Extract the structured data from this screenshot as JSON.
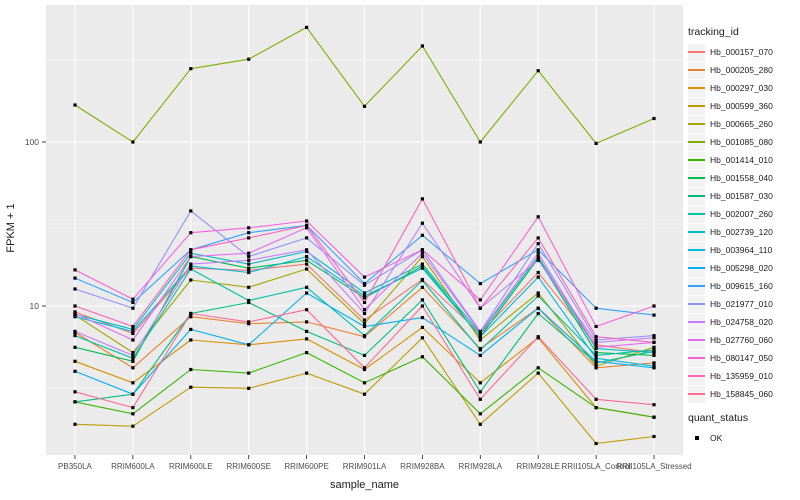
{
  "figure": {
    "legend": {
      "tracking_title": "tracking_id",
      "quant_title": "quant_status",
      "quant_ok_label": "OK"
    },
    "colors": {
      "panel_bg": "#EBEBEB",
      "gridline": "#FFFFFF",
      "tick_mark": "#333333",
      "tick_label": "#4D4D4D",
      "title_text": "#1A1A1A",
      "point": "#000000",
      "legend_key_bg": "#F2F2F2"
    }
  },
  "chart_data": {
    "type": "line",
    "title": "",
    "xlabel": "sample_name",
    "ylabel": "FPKM + 1",
    "y_scale": "log10",
    "ylim": [
      1.2,
      600
    ],
    "y_ticks": [
      10,
      100
    ],
    "y_minor_gridlines": [
      3.162,
      31.62,
      316.2
    ],
    "grid": "on",
    "legend_position": "right",
    "point_shape": "square",
    "point_color": "#000000",
    "quant_status": "OK",
    "categories": [
      "PB350LA",
      "RRIM600LA",
      "RRIM600LE",
      "RRIM600SE",
      "RRIM600PE",
      "RRIM901LA",
      "RRIM928BA",
      "RRIM928LA",
      "RRIM928LE",
      "RRII105LA_Control",
      "RRII105LA_Stressed"
    ],
    "series": [
      {
        "name": "Hb_000157_070",
        "color": "#F8766D",
        "values": [
          9.2,
          6.8,
          17,
          16.5,
          18,
          8.2,
          14.5,
          6.8,
          16,
          5.8,
          5.2
        ]
      },
      {
        "name": "Hb_000205_280",
        "color": "#EA8331",
        "values": [
          6.9,
          4.2,
          8.6,
          7.8,
          8.0,
          6.5,
          13,
          5.5,
          9.7,
          4.2,
          4.5
        ]
      },
      {
        "name": "Hb_000297_030",
        "color": "#D89000",
        "values": [
          4.6,
          3.4,
          6.2,
          5.8,
          6.3,
          4.1,
          7.4,
          3.4,
          6.4,
          2.4,
          2.1
        ]
      },
      {
        "name": "Hb_000599_360",
        "color": "#C09B00",
        "values": [
          1.9,
          1.85,
          3.2,
          3.15,
          3.9,
          2.9,
          6.4,
          1.9,
          3.9,
          1.45,
          1.6
        ]
      },
      {
        "name": "Hb_000665_260",
        "color": "#A3A500",
        "values": [
          8.8,
          5.2,
          14.4,
          13,
          16.8,
          7.8,
          20,
          6.2,
          12,
          4.3,
          5.6
        ]
      },
      {
        "name": "Hb_001085_080",
        "color": "#7CAE00",
        "values": [
          168,
          100,
          280,
          320,
          500,
          165,
          385,
          100,
          272,
          98,
          139
        ]
      },
      {
        "name": "Hb_001414_010",
        "color": "#39B600",
        "values": [
          2.6,
          2.2,
          4.1,
          3.9,
          5.2,
          3.4,
          4.9,
          2.2,
          4.2,
          2.4,
          2.1
        ]
      },
      {
        "name": "Hb_001558_040",
        "color": "#00BB4E",
        "values": [
          5.6,
          4.6,
          20,
          17,
          19,
          11.2,
          17.5,
          6.5,
          19.5,
          5.2,
          5.0
        ]
      },
      {
        "name": "Hb_001587_030",
        "color": "#00BF7D",
        "values": [
          2.6,
          2.9,
          9.0,
          10.5,
          7.0,
          5.0,
          10.9,
          3.0,
          9.0,
          4.5,
          5.3
        ]
      },
      {
        "name": "Hb_002007_260",
        "color": "#00C1A3",
        "values": [
          6.6,
          4.8,
          16.8,
          10.8,
          13,
          6.6,
          14.3,
          5.4,
          11.5,
          5.0,
          5.4
        ]
      },
      {
        "name": "Hb_002739_120",
        "color": "#00BFC4",
        "values": [
          8.9,
          7.2,
          21,
          18,
          21.5,
          12,
          18,
          6.8,
          20,
          5.5,
          5.2
        ]
      },
      {
        "name": "Hb_003964_110",
        "color": "#00BAE0",
        "values": [
          8.6,
          7.0,
          17.5,
          16,
          20,
          11.5,
          17,
          6.5,
          15,
          4.8,
          4.3
        ]
      },
      {
        "name": "Hb_005298_020",
        "color": "#00B0F6",
        "values": [
          4.0,
          2.9,
          7.2,
          5.8,
          12,
          7.5,
          8.5,
          5.0,
          9.7,
          4.6,
          4.2
        ]
      },
      {
        "name": "Hb_009615_160",
        "color": "#35A2FF",
        "values": [
          14.8,
          10.5,
          22,
          28,
          31,
          13.7,
          27,
          13.7,
          22,
          9.7,
          8.8
        ]
      },
      {
        "name": "Hb_021977_010",
        "color": "#9590FF",
        "values": [
          12.7,
          9.7,
          38,
          20,
          26,
          13.4,
          22,
          7.0,
          24,
          6.2,
          6.6
        ]
      },
      {
        "name": "Hb_024758_020",
        "color": "#C77CFF",
        "values": [
          7.0,
          5.0,
          18,
          19,
          22,
          9.0,
          32,
          9.7,
          19,
          6.0,
          6.4
        ]
      },
      {
        "name": "Hb_027760_060",
        "color": "#E76BF3",
        "values": [
          9.0,
          6.2,
          20,
          21,
          30,
          9.5,
          21,
          6.9,
          21,
          5.6,
          6.0
        ]
      },
      {
        "name": "Hb_080147_050",
        "color": "#FA62DB",
        "values": [
          16.6,
          11,
          28,
          30,
          33,
          15,
          22,
          10.9,
          35,
          7.5,
          10
        ]
      },
      {
        "name": "Hb_135959_010",
        "color": "#FF62BC",
        "values": [
          10,
          7.5,
          22,
          26,
          31,
          10.5,
          45,
          9.7,
          26,
          6.5,
          6.0
        ]
      },
      {
        "name": "Hb_158845_060",
        "color": "#FF6A98",
        "values": [
          3.0,
          2.4,
          9.0,
          8.0,
          9.5,
          4.2,
          10,
          2.7,
          6.5,
          2.7,
          2.5
        ]
      }
    ]
  }
}
